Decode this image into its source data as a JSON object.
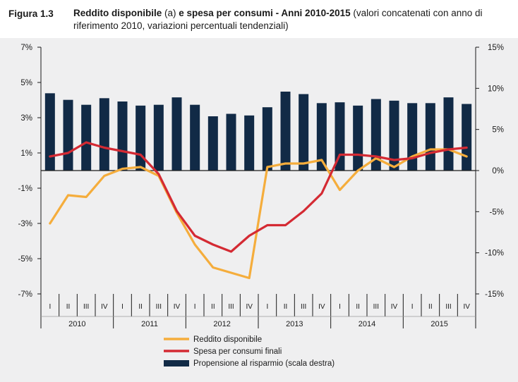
{
  "header": {
    "figure_label": "Figura 1.3",
    "title_bold_1": "Reddito disponibile",
    "title_regular_1": " (a) ",
    "title_bold_2": "e spesa per consumi - Anni 2010-2015",
    "title_regular_2": " (valori concatenati con anno di riferimento 2010, variazioni percentuali tendenziali)"
  },
  "colors": {
    "reddito": "#f5ad3c",
    "spesa": "#d42a33",
    "risparmio": "#112a46",
    "panel": "#efeff0"
  },
  "chart_data": {
    "type": "bar+line",
    "title": "Reddito disponibile (a) e spesa per consumi - Anni 2010-2015",
    "quarters": [
      "I",
      "II",
      "III",
      "IV",
      "I",
      "II",
      "III",
      "IV",
      "I",
      "II",
      "III",
      "IV",
      "I",
      "II",
      "III",
      "IV",
      "I",
      "II",
      "III",
      "IV",
      "I",
      "II",
      "III",
      "IV"
    ],
    "years": [
      "2010",
      "2011",
      "2012",
      "2013",
      "2014",
      "2015"
    ],
    "left_axis": {
      "min": -7,
      "max": 7,
      "ticks": [
        "7%",
        "5%",
        "3%",
        "1%",
        "-1%",
        "-3%",
        "-5%",
        "-7%"
      ],
      "tick_values": [
        7,
        5,
        3,
        1,
        -1,
        -3,
        -5,
        -7
      ]
    },
    "right_axis": {
      "min": -15,
      "max": 15,
      "ticks": [
        "15%",
        "10%",
        "5%",
        "0%",
        "-5%",
        "-10%",
        "-15%"
      ],
      "tick_values": [
        15,
        10,
        5,
        0,
        -5,
        -10,
        -15
      ]
    },
    "series": [
      {
        "name": "Reddito disponibile",
        "type": "line",
        "axis": "left",
        "values": [
          -3.0,
          -1.4,
          -1.5,
          -0.3,
          0.1,
          0.2,
          -0.3,
          -2.4,
          -4.2,
          -5.5,
          -5.8,
          -6.1,
          0.2,
          0.4,
          0.4,
          0.6,
          -1.1,
          0.0,
          0.7,
          0.2,
          0.8,
          1.2,
          1.2,
          0.8
        ]
      },
      {
        "name": "Spesa per consumi finali",
        "type": "line",
        "axis": "left",
        "values": [
          0.8,
          1.0,
          1.6,
          1.3,
          1.1,
          0.9,
          -0.2,
          -2.3,
          -3.7,
          -4.2,
          -4.6,
          -3.7,
          -3.1,
          -3.1,
          -2.3,
          -1.3,
          0.9,
          0.9,
          0.8,
          0.6,
          0.7,
          1.0,
          1.2,
          1.3
        ]
      },
      {
        "name": "Propensione al risparmio (scala destra)",
        "type": "bar",
        "axis": "right",
        "values": [
          9.4,
          8.6,
          8.0,
          8.8,
          8.4,
          7.9,
          8.0,
          8.9,
          8.0,
          6.6,
          6.9,
          6.7,
          7.7,
          9.6,
          9.3,
          8.2,
          8.3,
          7.9,
          8.7,
          8.5,
          8.2,
          8.2,
          8.9,
          8.1
        ]
      }
    ],
    "legend": {
      "position": "bottom-center",
      "items": [
        "Reddito disponibile",
        "Spesa per consumi finali",
        "Propensione al risparmio (scala destra)"
      ]
    },
    "grid": false
  }
}
